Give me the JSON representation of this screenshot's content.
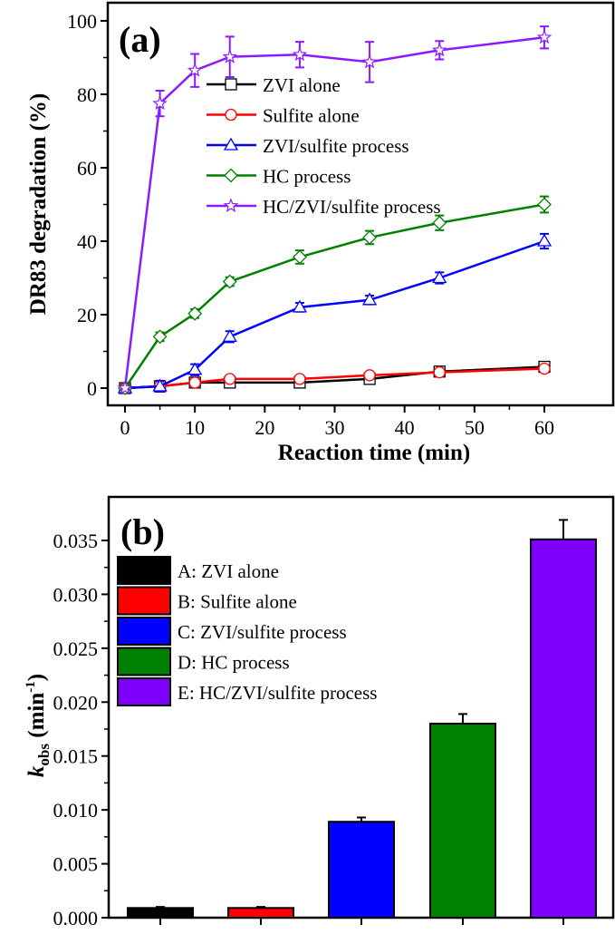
{
  "chart_data": [
    {
      "type": "line",
      "panel_label": "(a)",
      "xlabel": "Reaction time (min)",
      "ylabel": "DR83 degradation (%)",
      "xlim": [
        -2,
        63
      ],
      "ylim": [
        -5,
        103
      ],
      "xticks": [
        0,
        10,
        20,
        30,
        40,
        50,
        60
      ],
      "yticks": [
        0,
        20,
        40,
        60,
        80,
        100
      ],
      "grid": false,
      "legend_position": "center",
      "x": [
        0,
        5,
        10,
        15,
        25,
        35,
        45,
        60
      ],
      "series": [
        {
          "name": "ZVI alone",
          "color": "#000000",
          "marker": "square",
          "values": [
            0,
            0.5,
            1.5,
            1.5,
            1.5,
            2.5,
            4.5,
            5.8
          ],
          "errors": [
            0.3,
            0.5,
            0.8,
            0.8,
            0.8,
            0.8,
            0.8,
            0.8
          ]
        },
        {
          "name": "Sulfite alone",
          "color": "#ff0000",
          "marker": "circle",
          "values": [
            0,
            0.5,
            1.5,
            2.5,
            2.5,
            3.5,
            4.3,
            5.3
          ],
          "errors": [
            0.3,
            0.5,
            0.8,
            0.8,
            0.8,
            0.8,
            0.8,
            0.8
          ]
        },
        {
          "name": "ZVI/sulfite process",
          "color": "#0000ff",
          "marker": "triangle",
          "values": [
            0,
            0.5,
            5,
            14,
            22,
            24,
            30,
            40
          ],
          "errors": [
            0.3,
            1.5,
            1.5,
            1.5,
            1.2,
            1.2,
            1.5,
            2
          ]
        },
        {
          "name": "HC process",
          "color": "#008000",
          "marker": "diamond",
          "values": [
            0,
            14,
            20.3,
            29,
            35.7,
            41,
            45,
            50
          ],
          "errors": [
            0.3,
            1.2,
            1.2,
            1.2,
            1.8,
            1.8,
            2,
            2.2
          ]
        },
        {
          "name": "HC/ZVI/sulfite process",
          "color": "#8b1aff",
          "marker": "star",
          "values": [
            0,
            77.5,
            86.5,
            90.2,
            90.8,
            88.8,
            92,
            95.5
          ],
          "errors": [
            0.3,
            3.5,
            4.5,
            5.5,
            3.5,
            5.5,
            2.5,
            3
          ]
        }
      ]
    },
    {
      "type": "bar",
      "panel_label": "(b)",
      "xlabel": "",
      "ylabel_main": "k",
      "ylabel_sub": "obs",
      "ylabel_unit": "(min",
      "ylabel_sup": "-1",
      "ylabel_close": ")",
      "ylim": [
        0,
        0.037
      ],
      "yticks": [
        "0.000",
        "0.005",
        "0.010",
        "0.015",
        "0.020",
        "0.025",
        "0.030",
        "0.035"
      ],
      "categories": [
        "A",
        "B",
        "C",
        "D",
        "E"
      ],
      "values": [
        0.0009,
        0.0009,
        0.0089,
        0.018,
        0.0351
      ],
      "errors": [
        0.0001,
        0.0001,
        0.0004,
        0.0009,
        0.0018
      ],
      "colors": [
        "#000000",
        "#ff0000",
        "#0000ff",
        "#008000",
        "#7f00ff"
      ],
      "legend_position": "top-left",
      "legend": [
        "A: ZVI alone",
        "B: Sulfite alone",
        "C: ZVI/sulfite process",
        "D: HC process",
        "E: HC/ZVI/sulfite process"
      ]
    }
  ]
}
